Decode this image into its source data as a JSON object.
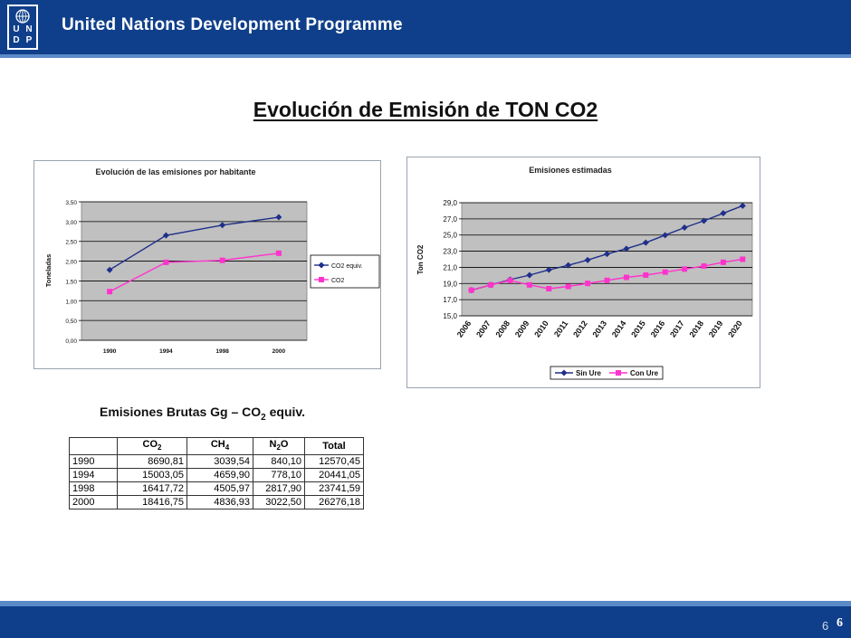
{
  "header": {
    "org_name": "United Nations Development Programme",
    "logo_letters": [
      "U",
      "N",
      "D",
      "P"
    ]
  },
  "slide_title": "Evolución de Emisión de  TON CO2",
  "chart_data": [
    {
      "type": "line",
      "title": "Evolución de las emisiones por habitante",
      "xlabel": "",
      "ylabel": "Toneladas",
      "categories": [
        "1990",
        "1994",
        "1998",
        "2000"
      ],
      "ylim": [
        0,
        3.5
      ],
      "yticks": [
        "0,00",
        "0,50",
        "1,00",
        "1,50",
        "2,00",
        "2,50",
        "3,00",
        "3,50"
      ],
      "grid": true,
      "legend_position": "right",
      "series": [
        {
          "name": "CO2 equiv.",
          "color": "#1f2f8a",
          "marker": "diamond",
          "values": [
            1.78,
            2.65,
            2.91,
            3.11
          ]
        },
        {
          "name": "CO2",
          "color": "#ff33cc",
          "marker": "square",
          "values": [
            1.23,
            1.97,
            2.02,
            2.2
          ]
        }
      ]
    },
    {
      "type": "line",
      "title": "Emisiones estimadas",
      "xlabel": "",
      "ylabel": "Ton CO2",
      "categories": [
        "2006",
        "2007",
        "2008",
        "2009",
        "2010",
        "2011",
        "2012",
        "2013",
        "2014",
        "2015",
        "2016",
        "2017",
        "2018",
        "2019",
        "2020"
      ],
      "ylim": [
        15,
        30
      ],
      "yticks": [
        "15,0",
        "17,0",
        "19,0",
        "21,0",
        "23,0",
        "25,0",
        "27,0",
        "29,0"
      ],
      "grid": true,
      "legend_position": "bottom",
      "series": [
        {
          "name": "Sin Ure",
          "color": "#1f2f8a",
          "marker": "diamond",
          "values": [
            18.4,
            19.1,
            19.8,
            20.4,
            21.1,
            21.7,
            22.4,
            23.2,
            23.9,
            24.7,
            25.7,
            26.7,
            27.6,
            28.6,
            29.6
          ]
        },
        {
          "name": "Con Ure",
          "color": "#ff33cc",
          "marker": "square",
          "values": [
            18.4,
            19.1,
            19.7,
            19.1,
            18.6,
            18.9,
            19.3,
            19.7,
            20.1,
            20.4,
            20.8,
            21.2,
            21.6,
            22.1,
            22.5
          ]
        }
      ]
    }
  ],
  "table": {
    "title_main": "Emisiones Brutas Gg – CO",
    "title_sub": "2",
    "title_end": " equiv.",
    "headers": [
      {
        "main": "",
        "sub": ""
      },
      {
        "main": "CO",
        "sub": "2"
      },
      {
        "main": "CH",
        "sub": "4"
      },
      {
        "main": "N",
        "sub": "2",
        "tail": "O"
      },
      {
        "main": "Total",
        "sub": ""
      }
    ],
    "rows": [
      [
        "1990",
        "8690,81",
        "3039,54",
        "840,10",
        "12570,45"
      ],
      [
        "1994",
        "15003,05",
        "4659,90",
        "778,10",
        "20441,05"
      ],
      [
        "1998",
        "16417,72",
        "4505,97",
        "2817,90",
        "23741,59"
      ],
      [
        "2000",
        "18416,75",
        "4836,93",
        "3022,50",
        "26276,18"
      ]
    ]
  },
  "footer": {
    "page_small": "6",
    "page_bold": "6"
  }
}
